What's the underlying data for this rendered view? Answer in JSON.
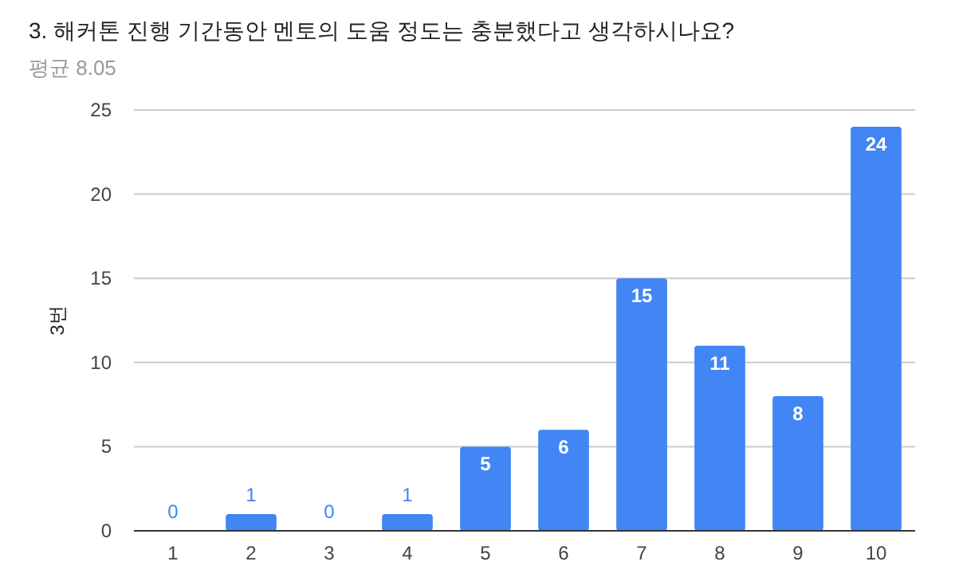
{
  "chart_data": {
    "type": "bar",
    "title": "3. 해커톤 진행 기간동안 멘토의 도움 정도는 충분했다고 생각하시나요?",
    "subtitle": "평균 8.05",
    "ylabel": "3번",
    "categories": [
      "1",
      "2",
      "3",
      "4",
      "5",
      "6",
      "7",
      "8",
      "9",
      "10"
    ],
    "values": [
      0,
      1,
      0,
      1,
      5,
      6,
      15,
      11,
      8,
      24
    ],
    "color": "#4285f4",
    "ylim": [
      0,
      25
    ],
    "yticks": [
      0,
      5,
      10,
      15,
      20,
      25
    ],
    "grid": "y",
    "data_labels": true
  }
}
